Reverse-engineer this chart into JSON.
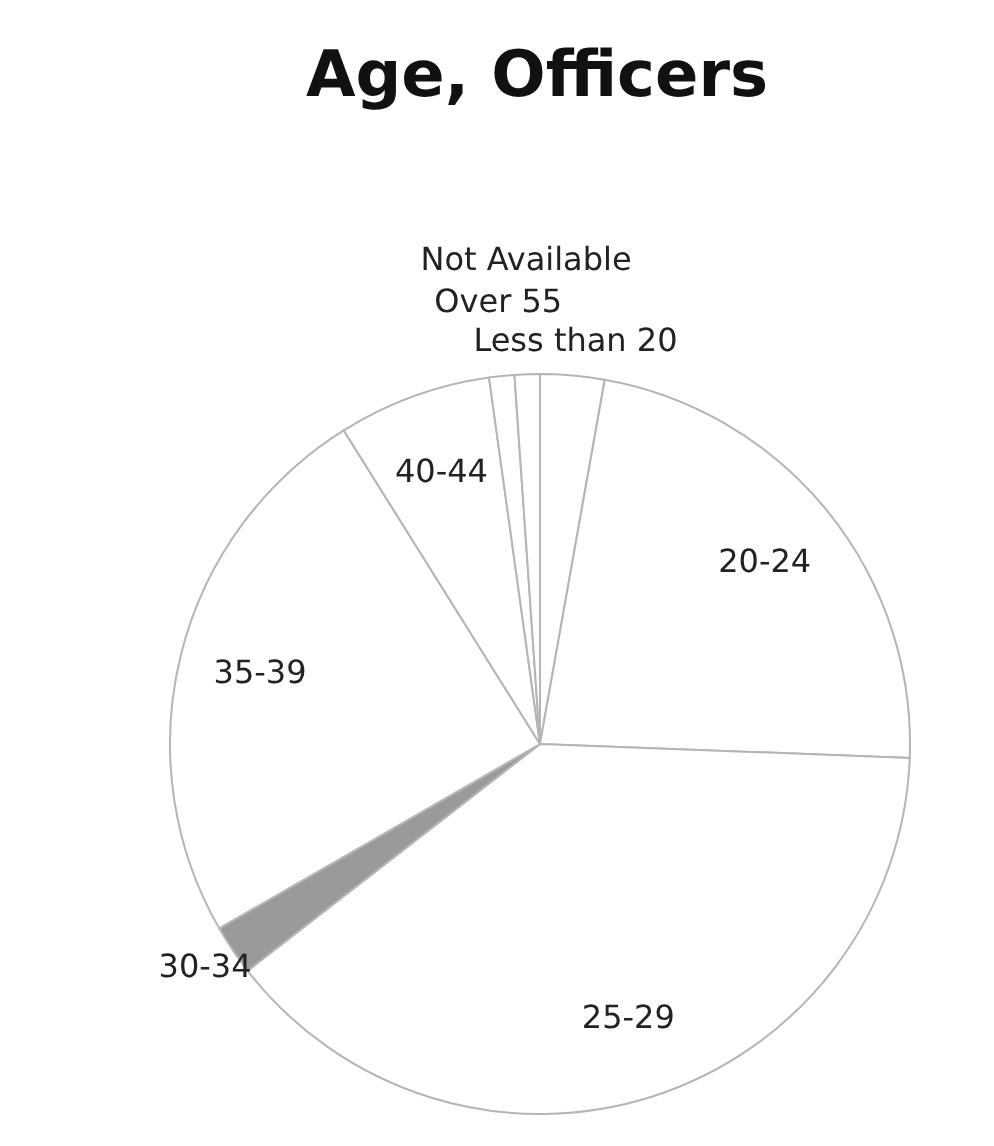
{
  "chart_data": {
    "type": "pie",
    "title": "Age, Officers",
    "categories": [
      "Less than 20",
      "20-24",
      "25-29",
      "30-34",
      "35-39",
      "40-44",
      "Over 55",
      "Not Available"
    ],
    "values": [
      2.8,
      22.8,
      38.9,
      2.2,
      24.4,
      6.7,
      1.1,
      1.1
    ],
    "colors": [
      "#ffffff",
      "#ffffff",
      "#ffffff",
      "#9a9a9a",
      "#ffffff",
      "#ffffff",
      "#ffffff",
      "#ffffff"
    ]
  }
}
